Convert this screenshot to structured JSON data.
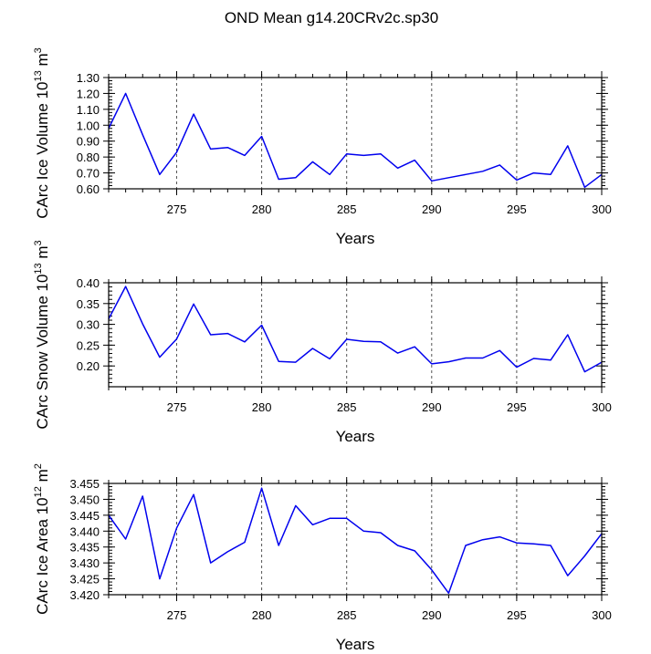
{
  "figure_title": "OND Mean g14.20CRv2c.sp30",
  "colors": {
    "line": "#0000ee",
    "axis": "#000000",
    "grid": "#555555",
    "background": "#ffffff"
  },
  "chart_data": [
    {
      "type": "line",
      "title": "",
      "xlabel": "Years",
      "ylabel": {
        "prefix": "CArc Ice Volume 10",
        "sup1": "13",
        "mid": " m",
        "sup2": "3"
      },
      "xlim": [
        271,
        300
      ],
      "ylim": [
        0.6,
        1.3
      ],
      "x_ticks": [
        275,
        280,
        285,
        290,
        295,
        300
      ],
      "y_ticks": [
        0.6,
        0.7,
        0.8,
        0.9,
        1.0,
        1.1,
        1.2,
        1.3
      ],
      "y_tick_labels": [
        "0.60",
        "0.70",
        "0.80",
        "0.90",
        "1.00",
        "1.10",
        "1.20",
        "1.30"
      ],
      "y_minor_step": 0.02,
      "vertical_gridlines": [
        275,
        280,
        285,
        290,
        295
      ],
      "series": [
        {
          "name": "CArc Ice Volume",
          "x": [
            271,
            272,
            273,
            274,
            275,
            276,
            277,
            278,
            279,
            280,
            281,
            282,
            283,
            284,
            285,
            286,
            287,
            288,
            289,
            290,
            291,
            292,
            293,
            294,
            295,
            296,
            297,
            298,
            299,
            300
          ],
          "values": [
            0.98,
            1.2,
            0.94,
            0.69,
            0.83,
            1.07,
            0.85,
            0.86,
            0.81,
            0.93,
            0.66,
            0.67,
            0.77,
            0.69,
            0.82,
            0.81,
            0.82,
            0.73,
            0.78,
            0.65,
            0.67,
            0.69,
            0.71,
            0.75,
            0.655,
            0.7,
            0.69,
            0.87,
            0.61,
            0.69
          ]
        }
      ]
    },
    {
      "type": "line",
      "title": "",
      "xlabel": "Years",
      "ylabel": {
        "prefix": "CArc Snow Volume 10",
        "sup1": "13",
        "mid": " m",
        "sup2": "3"
      },
      "xlim": [
        271,
        300
      ],
      "ylim": [
        0.15,
        0.4
      ],
      "x_ticks": [
        275,
        280,
        285,
        290,
        295,
        300
      ],
      "y_ticks": [
        0.2,
        0.25,
        0.3,
        0.35,
        0.4
      ],
      "y_tick_labels": [
        "0.20",
        "0.25",
        "0.30",
        "0.35",
        "0.40"
      ],
      "y_minor_step": 0.01,
      "vertical_gridlines": [
        275,
        280,
        285,
        290,
        295
      ],
      "series": [
        {
          "name": "CArc Snow Volume",
          "x": [
            271,
            272,
            273,
            274,
            275,
            276,
            277,
            278,
            279,
            280,
            281,
            282,
            283,
            284,
            285,
            286,
            287,
            288,
            289,
            290,
            291,
            292,
            293,
            294,
            295,
            296,
            297,
            298,
            299,
            300
          ],
          "values": [
            0.313,
            0.391,
            0.301,
            0.221,
            0.265,
            0.349,
            0.275,
            0.278,
            0.258,
            0.298,
            0.211,
            0.209,
            0.242,
            0.217,
            0.264,
            0.259,
            0.258,
            0.231,
            0.246,
            0.205,
            0.21,
            0.219,
            0.219,
            0.237,
            0.197,
            0.218,
            0.214,
            0.275,
            0.186,
            0.209
          ]
        }
      ]
    },
    {
      "type": "line",
      "title": "",
      "xlabel": "Years",
      "ylabel": {
        "prefix": "CArc Ice Area 10",
        "sup1": "12",
        "mid": " m",
        "sup2": "2"
      },
      "xlim": [
        271,
        300
      ],
      "ylim": [
        3.42,
        3.455
      ],
      "x_ticks": [
        275,
        280,
        285,
        290,
        295,
        300
      ],
      "y_ticks": [
        3.42,
        3.425,
        3.43,
        3.435,
        3.44,
        3.445,
        3.45,
        3.455
      ],
      "y_tick_labels": [
        "3.420",
        "3.425",
        "3.430",
        "3.435",
        "3.440",
        "3.445",
        "3.450",
        "3.455"
      ],
      "y_minor_step": 0.001,
      "vertical_gridlines": [
        275,
        280,
        285,
        290,
        295
      ],
      "series": [
        {
          "name": "CArc Ice Area",
          "x": [
            271,
            272,
            273,
            274,
            275,
            276,
            277,
            278,
            279,
            280,
            281,
            282,
            283,
            284,
            285,
            286,
            287,
            288,
            289,
            290,
            291,
            292,
            293,
            294,
            295,
            296,
            297,
            298,
            299,
            300
          ],
          "values": [
            3.445,
            3.4375,
            3.451,
            3.425,
            3.441,
            3.4515,
            3.43,
            3.4335,
            3.4365,
            3.4535,
            3.4355,
            3.448,
            3.442,
            3.444,
            3.444,
            3.44,
            3.4395,
            3.4355,
            3.4338,
            3.4278,
            3.4205,
            3.4355,
            3.4373,
            3.4382,
            3.4363,
            3.436,
            3.4355,
            3.426,
            3.4322,
            3.4392
          ]
        }
      ]
    }
  ]
}
